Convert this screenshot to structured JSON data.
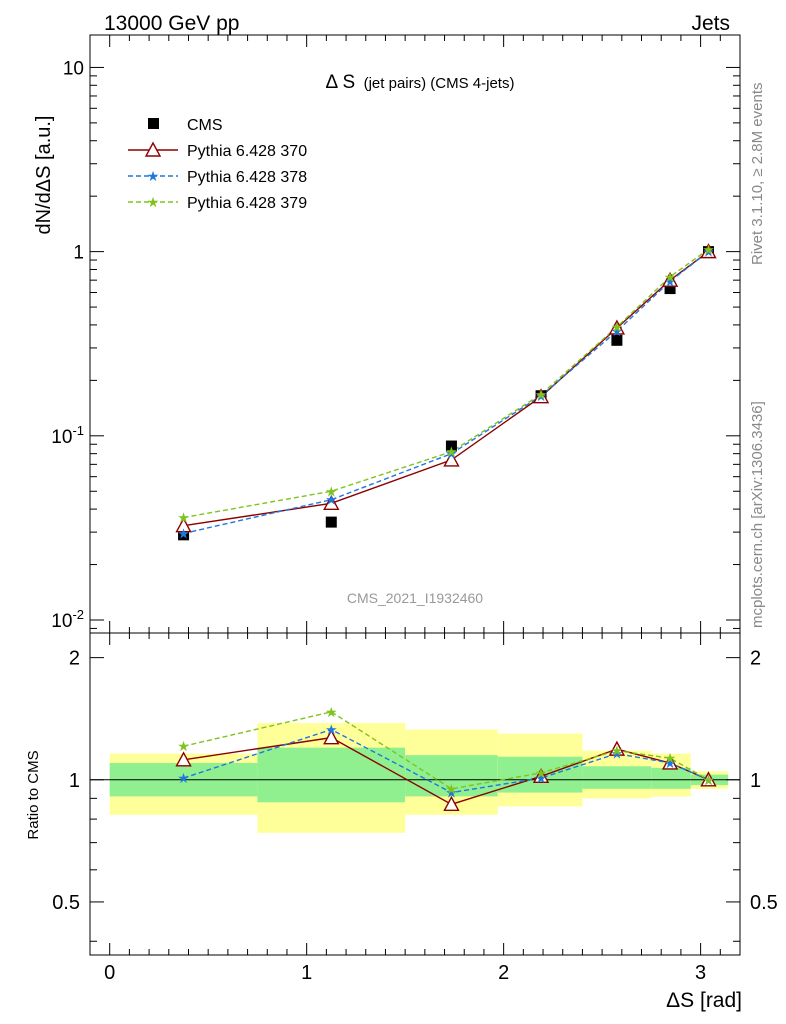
{
  "header": {
    "left": "13000 GeV pp",
    "right": "Jets"
  },
  "side_labels": {
    "top": "Rivet 3.1.10, ≥ 2.8M events",
    "bottom": "mcplots.cern.ch [arXiv:1306.3436]"
  },
  "chart_data": {
    "type": "line",
    "title": "Δ S",
    "subtitle": "(jet pairs) (CMS 4-jets)",
    "watermark": "CMS_2021_I1932460",
    "xlabel": "ΔS [rad]",
    "ylabel": "dN/dΔS [a.u.]",
    "ratio_ylabel": "Ratio to CMS",
    "xlim": [
      -0.1,
      3.2
    ],
    "ylim": [
      0.0085,
      15
    ],
    "yscale": "log",
    "ratio_ylim": [
      0.37,
      2.3
    ],
    "ratio_yscale": "log",
    "x_ticks": [
      "0",
      "1",
      "2",
      "3"
    ],
    "y_ticks": [
      {
        "base": "10",
        "exp": "-2"
      },
      {
        "base": "10",
        "exp": "-1"
      },
      {
        "base": "1",
        "exp": ""
      },
      {
        "base": "10",
        "exp": ""
      }
    ],
    "ratio_ticks": [
      "0.5",
      "1",
      "2"
    ],
    "legend_position": "top-left",
    "x": [
      0.375,
      1.125,
      1.735,
      2.19,
      2.575,
      2.845,
      3.04
    ],
    "series": [
      {
        "name": "CMS",
        "style": "data",
        "color": "#000000",
        "values": [
          0.029,
          0.034,
          0.088,
          0.165,
          0.33,
          0.63,
          1.0
        ]
      },
      {
        "name": "Pythia 6.428 370",
        "style": "solid-triangle",
        "color": "#8b0000",
        "values": [
          0.0325,
          0.043,
          0.074,
          0.163,
          0.385,
          0.7,
          1.0
        ],
        "ratio": [
          1.12,
          1.27,
          0.87,
          1.02,
          1.19,
          1.1,
          1.0
        ]
      },
      {
        "name": "Pythia 6.428 378",
        "style": "dashed-star",
        "color": "#1f77e0",
        "values": [
          0.0295,
          0.045,
          0.08,
          0.165,
          0.37,
          0.69,
          1.0
        ],
        "ratio": [
          1.01,
          1.33,
          0.93,
          1.01,
          1.16,
          1.1,
          1.0
        ]
      },
      {
        "name": "Pythia 6.428 379",
        "style": "dashed-star",
        "color": "#7fc31c",
        "values": [
          0.036,
          0.05,
          0.082,
          0.168,
          0.39,
          0.73,
          1.03
        ],
        "ratio": [
          1.21,
          1.47,
          0.95,
          1.04,
          1.18,
          1.13,
          1.0
        ]
      }
    ],
    "uncertainty_bands": [
      {
        "x0": 0.0,
        "x1": 0.75,
        "inner": [
          0.91,
          1.1
        ],
        "outer": [
          0.82,
          1.16
        ]
      },
      {
        "x0": 0.75,
        "x1": 1.5,
        "inner": [
          0.88,
          1.2
        ],
        "outer": [
          0.74,
          1.38
        ]
      },
      {
        "x0": 1.5,
        "x1": 1.97,
        "inner": [
          0.91,
          1.15
        ],
        "outer": [
          0.82,
          1.33
        ]
      },
      {
        "x0": 1.97,
        "x1": 2.4,
        "inner": [
          0.93,
          1.14
        ],
        "outer": [
          0.86,
          1.3
        ]
      },
      {
        "x0": 2.4,
        "x1": 2.75,
        "inner": [
          0.95,
          1.08
        ],
        "outer": [
          0.9,
          1.18
        ]
      },
      {
        "x0": 2.75,
        "x1": 2.95,
        "inner": [
          0.95,
          1.07
        ],
        "outer": [
          0.91,
          1.16
        ]
      },
      {
        "x0": 2.95,
        "x1": 3.14,
        "inner": [
          0.97,
          1.03
        ],
        "outer": [
          0.95,
          1.05
        ]
      }
    ],
    "colors": {
      "band_inner": "#90f090",
      "band_outer": "#ffff99",
      "axis": "#000000",
      "watermark": "#999999"
    }
  }
}
